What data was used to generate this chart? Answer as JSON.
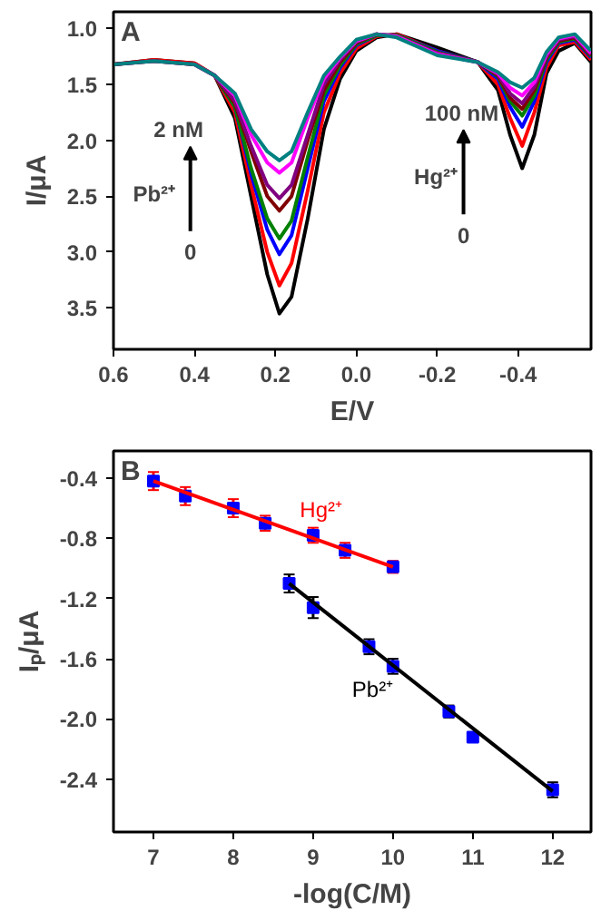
{
  "chart_data": [
    {
      "type": "line",
      "xlabel": "E/V",
      "ylabel": "I/μA",
      "grid": false,
      "xlim": [
        0.6,
        -0.58
      ],
      "ylim": [
        3.87,
        0.85
      ],
      "xticks": [
        0.6,
        0.4,
        0.2,
        {
          "value": 0,
          "label": "0.0"
        },
        -0.2,
        -0.4
      ],
      "yticks": [
        {
          "value": 1,
          "label": "1.0"
        },
        1.5,
        {
          "value": 2,
          "label": "2.0"
        },
        2.5,
        {
          "value": 3,
          "label": "3.0"
        },
        3.5
      ],
      "x": [
        0.6,
        0.5,
        0.4,
        0.35,
        0.3,
        0.26,
        0.22,
        0.19,
        0.16,
        0.12,
        0.08,
        0.04,
        0.0,
        -0.05,
        -0.1,
        -0.2,
        -0.3,
        -0.35,
        -0.38,
        -0.41,
        -0.44,
        -0.47,
        -0.5,
        -0.54,
        -0.58
      ],
      "annotations": [
        "A",
        "2 nM",
        "Pb²⁺",
        "0",
        "100 nM",
        "Hg²⁺",
        "0"
      ],
      "series": [
        {
          "color": "#000000",
          "values": [
            1.32,
            1.28,
            1.31,
            1.42,
            1.8,
            2.5,
            3.2,
            3.55,
            3.4,
            2.7,
            1.9,
            1.45,
            1.2,
            1.08,
            1.05,
            1.17,
            1.3,
            1.55,
            1.95,
            2.25,
            1.95,
            1.4,
            1.2,
            1.13,
            1.3
          ]
        },
        {
          "color": "#ff0000",
          "values": [
            1.32,
            1.28,
            1.31,
            1.42,
            1.75,
            2.4,
            3.0,
            3.3,
            3.1,
            2.45,
            1.75,
            1.4,
            1.18,
            1.07,
            1.05,
            1.2,
            1.3,
            1.5,
            1.8,
            2.05,
            1.75,
            1.35,
            1.15,
            1.12,
            1.28
          ]
        },
        {
          "color": "#0000ff",
          "values": [
            null,
            null,
            null,
            1.42,
            1.7,
            2.3,
            2.8,
            3.02,
            2.85,
            2.25,
            1.65,
            1.35,
            1.15,
            1.06,
            1.06,
            1.2,
            1.3,
            1.45,
            1.7,
            1.88,
            1.65,
            1.3,
            1.13,
            1.1,
            1.26
          ]
        },
        {
          "color": "#008000",
          "values": [
            null,
            null,
            1.32,
            1.42,
            1.7,
            2.25,
            2.7,
            2.88,
            2.72,
            2.15,
            1.6,
            1.33,
            1.14,
            1.06,
            1.06,
            1.21,
            1.3,
            1.43,
            1.65,
            1.78,
            1.6,
            1.28,
            1.12,
            1.09,
            1.25
          ]
        },
        {
          "color": "#800000",
          "values": [
            1.32,
            1.29,
            1.32,
            1.42,
            1.67,
            2.1,
            2.5,
            2.63,
            2.5,
            2.0,
            1.55,
            1.3,
            1.13,
            1.05,
            1.07,
            1.22,
            1.3,
            1.42,
            1.62,
            1.72,
            1.55,
            1.26,
            1.11,
            1.08,
            1.24
          ]
        },
        {
          "color": "#800080",
          "values": [
            1.32,
            1.29,
            1.32,
            1.42,
            1.65,
            2.05,
            2.4,
            2.52,
            2.4,
            1.95,
            1.5,
            1.28,
            1.12,
            1.05,
            1.07,
            1.22,
            1.3,
            1.41,
            1.58,
            1.67,
            1.52,
            1.25,
            1.1,
            1.07,
            1.23
          ]
        },
        {
          "color": "#ff00ff",
          "values": [
            null,
            null,
            1.32,
            1.42,
            1.6,
            1.95,
            2.2,
            2.29,
            2.2,
            1.8,
            1.45,
            1.26,
            1.11,
            1.05,
            1.07,
            1.23,
            1.3,
            1.4,
            1.53,
            1.6,
            1.48,
            1.23,
            1.09,
            1.06,
            1.22
          ]
        },
        {
          "color": "#008080",
          "values": [
            1.32,
            1.29,
            1.32,
            1.42,
            1.58,
            1.9,
            2.1,
            2.18,
            2.1,
            1.75,
            1.42,
            1.25,
            1.1,
            1.05,
            1.08,
            1.24,
            1.3,
            1.39,
            1.48,
            1.53,
            1.44,
            1.21,
            1.08,
            1.05,
            1.2
          ]
        }
      ]
    },
    {
      "type": "scatter",
      "xlabel": "-log(C/M)",
      "ylabel": "Iₚ/μA",
      "grid": false,
      "xlim": [
        6.5,
        12.48
      ],
      "ylim": [
        -2.75,
        -0.22
      ],
      "xticks": [
        7,
        8,
        9,
        10,
        11,
        12
      ],
      "yticks": [
        -0.4,
        -0.8,
        -1.2,
        -1.6,
        {
          "value": -2,
          "label": "-2.0"
        },
        -2.4
      ],
      "annotations": [
        "B"
      ],
      "series": [
        {
          "type": "scatter",
          "marker": "square",
          "color": "#0000ff",
          "x": [
            7,
            7.4,
            8,
            8.4,
            9,
            9.4,
            10
          ],
          "values": [
            -0.42,
            -0.52,
            -0.6,
            -0.7,
            -0.78,
            -0.88,
            -0.99
          ],
          "errors": [
            0.06,
            0.06,
            0.06,
            0.05,
            0.05,
            0.05,
            0.04
          ]
        },
        {
          "type": "line",
          "name": "Hg²⁺",
          "color": "#ff0000",
          "x": [
            7,
            10
          ],
          "values": [
            -0.42,
            -0.99
          ]
        },
        {
          "type": "scatter",
          "marker": "square",
          "color": "#0000ff",
          "x": [
            8.7,
            9,
            9.7,
            10,
            10.7,
            11,
            12
          ],
          "values": [
            -1.1,
            -1.26,
            -1.52,
            -1.65,
            -1.95,
            -2.12,
            -2.47
          ],
          "errors": [
            0.06,
            0.07,
            0.05,
            0.05,
            0.04,
            0.03,
            0.05
          ]
        },
        {
          "type": "line",
          "name": "Pb²⁺",
          "color": "#000000",
          "x": [
            8.7,
            12
          ],
          "values": [
            -1.1,
            -2.48
          ]
        }
      ]
    }
  ]
}
